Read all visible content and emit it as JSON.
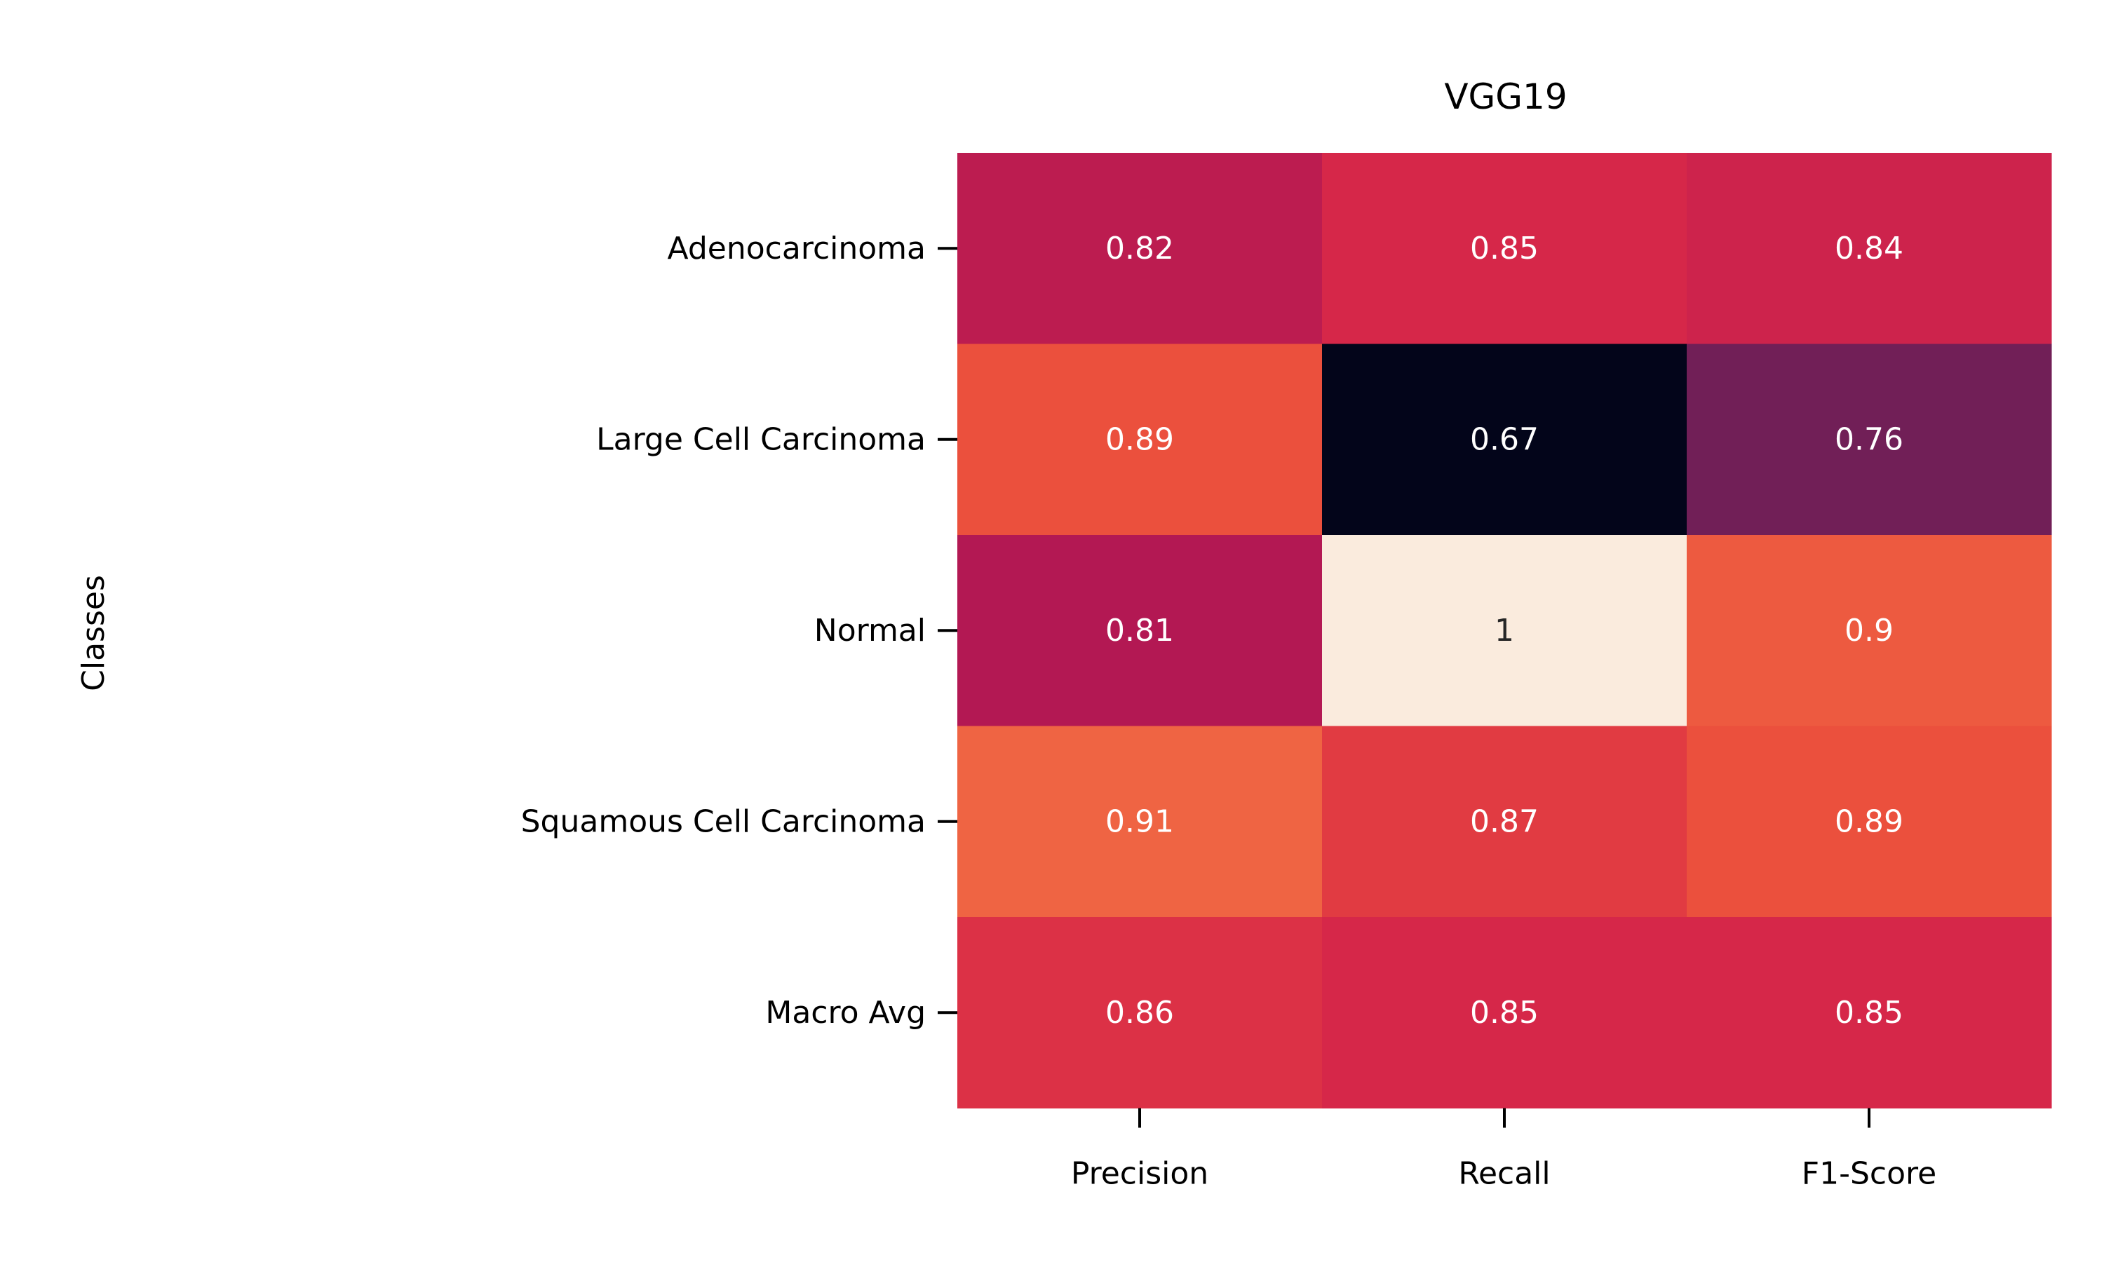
{
  "chart_data": {
    "type": "heatmap",
    "title": "VGG19",
    "xlabel": "",
    "ylabel": "Classes",
    "columns": [
      "Precision",
      "Recall",
      "F1-Score"
    ],
    "rows": [
      "Adenocarcinoma",
      "Large Cell Carcinoma",
      "Normal",
      "Squamous Cell Carcinoma",
      "Macro Avg"
    ],
    "values": [
      [
        0.82,
        0.85,
        0.84
      ],
      [
        0.89,
        0.67,
        0.76
      ],
      [
        0.81,
        1,
        0.9
      ],
      [
        0.91,
        0.87,
        0.89
      ],
      [
        0.86,
        0.85,
        0.85
      ]
    ],
    "colormap": "rocket",
    "colorbar": false,
    "grid": false
  }
}
